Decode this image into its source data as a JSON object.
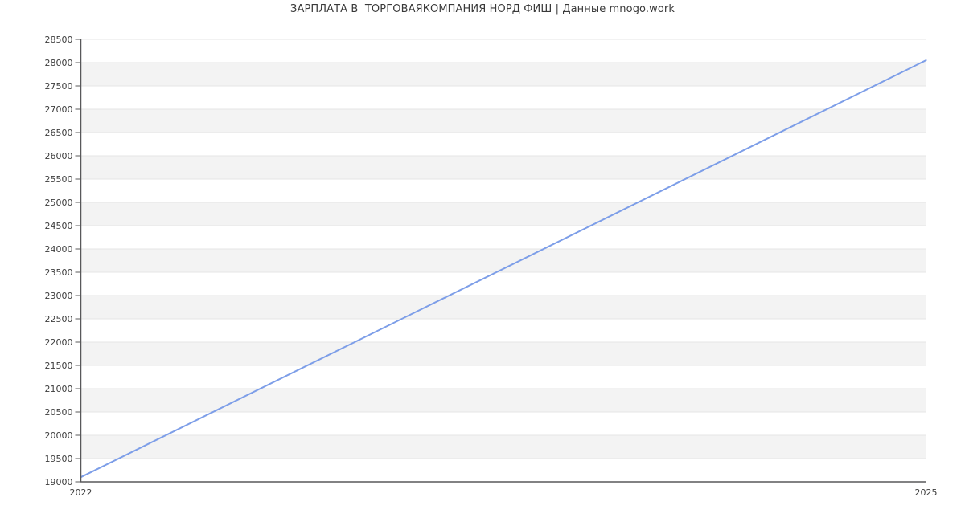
{
  "chart_data": {
    "type": "line",
    "title": "ЗАРПЛАТА В  ТОРГОВАЯКОМПАНИЯ НОРД ФИШ | Данные mnogo.work",
    "series": [
      {
        "name": "Зарплата",
        "x": [
          2022,
          2025
        ],
        "y": [
          19100,
          28050
        ]
      }
    ],
    "xlabel": "",
    "ylabel": "",
    "xlim": [
      2022,
      2025
    ],
    "ylim": [
      19000,
      28500
    ],
    "ytick_step": 500,
    "yticks": [
      19000,
      19500,
      20000,
      20500,
      21000,
      21500,
      22000,
      22500,
      23000,
      23500,
      24000,
      24500,
      25000,
      25500,
      26000,
      26500,
      27000,
      27500,
      28000,
      28500
    ],
    "xticks": [
      2022,
      2025
    ],
    "grid": true,
    "legend": "none",
    "style": {
      "line_color": "#7d9ee8",
      "line_width": 2,
      "band_color": "#f3f3f3",
      "grid_color": "#e5e5e5",
      "axis_color": "#58585a",
      "tick_label_color": "#3d3d3d",
      "title_color": "#3a3a3a",
      "background": "#ffffff"
    }
  }
}
